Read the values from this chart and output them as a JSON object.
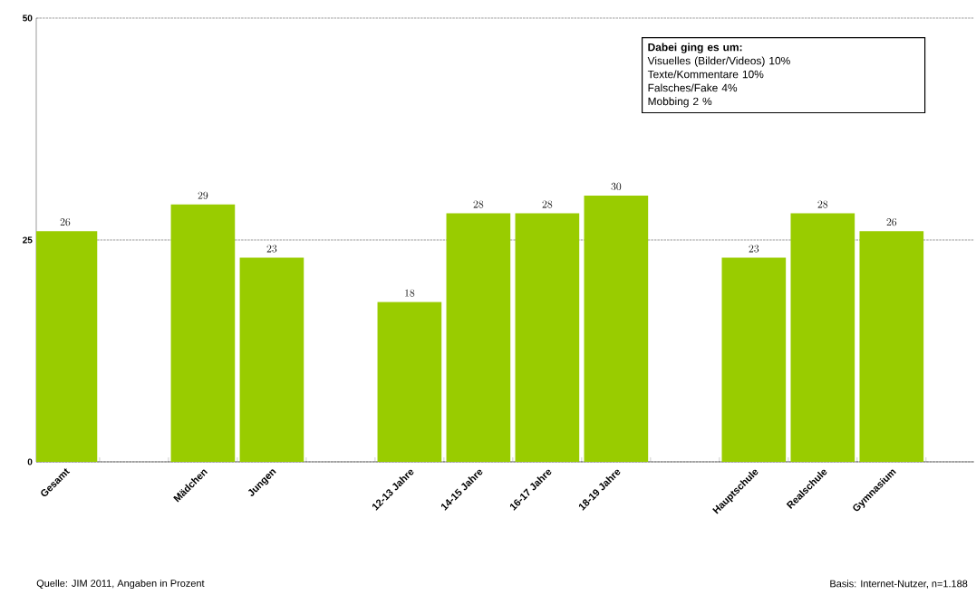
{
  "chart_data": {
    "type": "bar",
    "categories": [
      "Gesamt",
      null,
      "Mädchen",
      "Jungen",
      null,
      "12-13 Jahre",
      "14-15 Jahre",
      "16-17 Jahre",
      "18-19 Jahre",
      null,
      "Hauptschule",
      "Realschule",
      "Gymnasium"
    ],
    "values": [
      26,
      null,
      29,
      23,
      null,
      18,
      28,
      28,
      30,
      null,
      23,
      28,
      26
    ],
    "color": "#99cc00",
    "ylim": [
      0,
      50
    ],
    "yticks": [
      0,
      25,
      50
    ],
    "grid": "y",
    "data_labels": true,
    "annotations": [
      "Dabei ging es um:",
      "Visuelles (Bilder/Videos) 10%",
      "Texte/Kommentare 10%",
      "Falsches/Fake 4%",
      "Mobbing 2 %",
      "Quelle: JIM 2011, Angaben in Prozent",
      "Basis: Internet-Nutzer, n=1.188"
    ]
  }
}
